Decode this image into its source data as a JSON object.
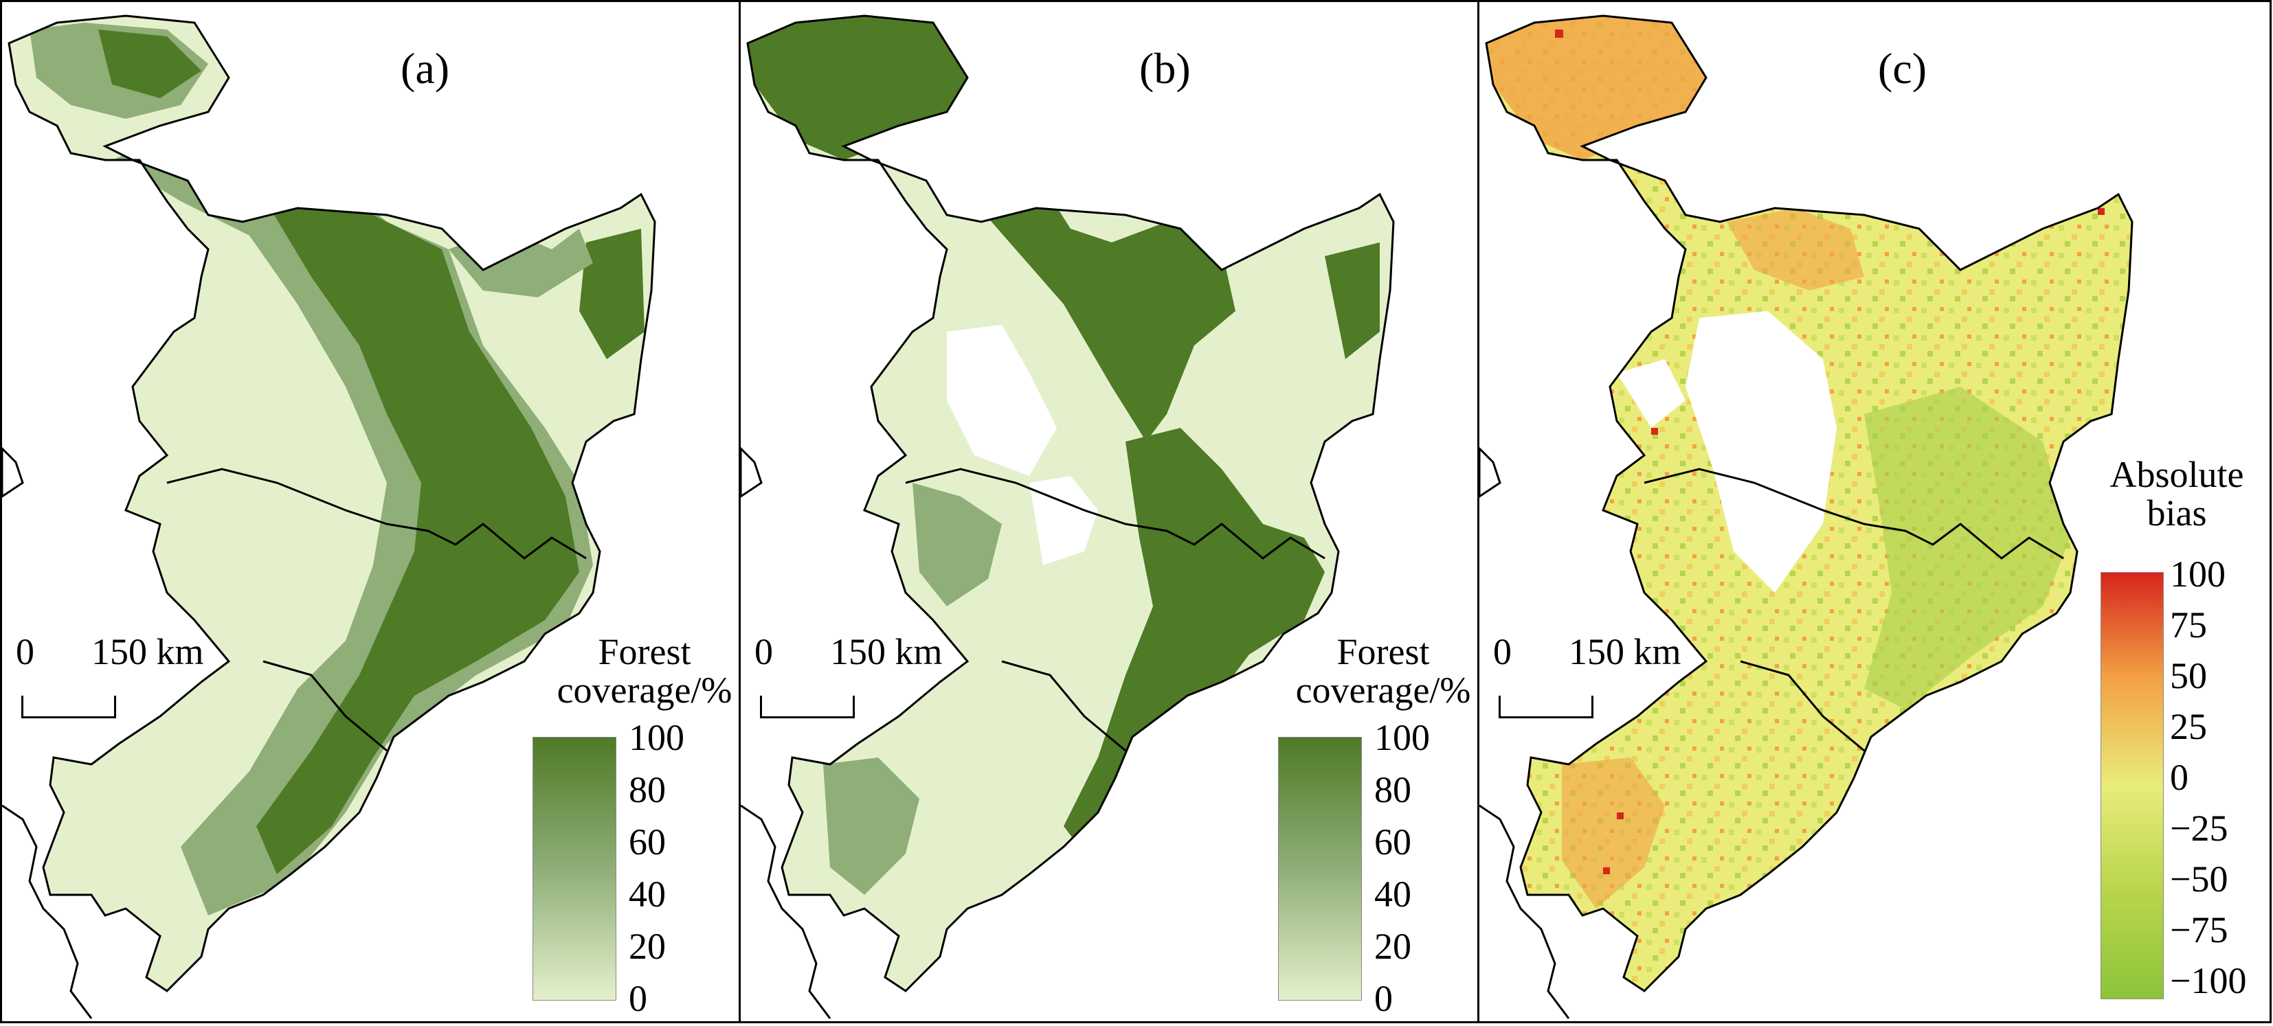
{
  "figure": {
    "panels": [
      {
        "label": "(a)",
        "legend_title_line1": "Forest",
        "legend_title_line2": "coverage/%",
        "legend_ticks": [
          "100",
          "80",
          "60",
          "40",
          "20",
          "0"
        ],
        "legend_min": 0,
        "legend_max": 100
      },
      {
        "label": "(b)",
        "legend_title_line1": "Forest",
        "legend_title_line2": "coverage/%",
        "legend_ticks": [
          "100",
          "80",
          "60",
          "40",
          "20",
          "0"
        ],
        "legend_min": 0,
        "legend_max": 100
      },
      {
        "label": "(c)",
        "legend_title_line1": "Absolute",
        "legend_title_line2": "bias",
        "legend_ticks": [
          "100",
          "75",
          "50",
          "25",
          "0",
          "−25",
          "−50",
          "−75",
          "−100"
        ],
        "legend_min": -100,
        "legend_max": 100
      }
    ],
    "scale_bar": {
      "zero": "0",
      "distance": "150 km"
    },
    "colors": {
      "forest_low": "#e4f0cc",
      "forest_mid": "#8fae78",
      "forest_high": "#4f7a26",
      "bias_neg": "#8cc43a",
      "bias_zero": "#e9ec7a",
      "bias_mid": "#f3a244",
      "bias_pos": "#d7261c",
      "boundary": "#000000"
    }
  }
}
